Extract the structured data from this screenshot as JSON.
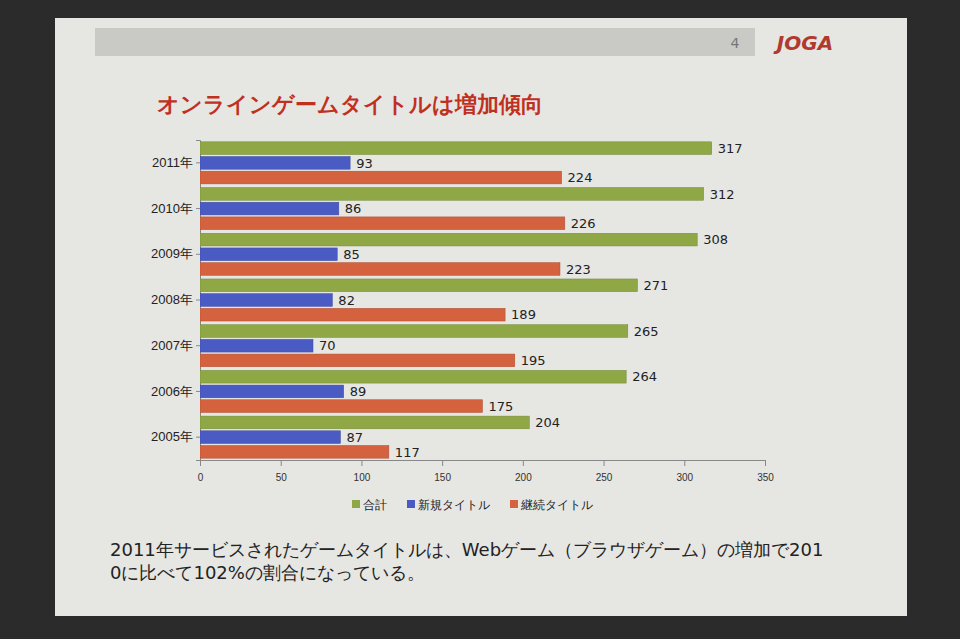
{
  "chart_data": {
    "type": "bar",
    "orientation": "horizontal",
    "title": "オンラインゲームタイトルは増加傾向",
    "page_number": "4",
    "logo": "JOGA",
    "note": "2011年サービスされたゲームタイトルは、Webゲーム（ブラウザゲーム）の増加で2010に比べて102%の割合になっている。",
    "categories": [
      "2011年",
      "2010年",
      "2009年",
      "2008年",
      "2007年",
      "2006年",
      "2005年"
    ],
    "series": [
      {
        "name": "合計",
        "color": "#8fa845",
        "values": [
          317,
          312,
          308,
          271,
          265,
          264,
          204
        ]
      },
      {
        "name": "新規タイトル",
        "color": "#4a5cc4",
        "values": [
          93,
          86,
          85,
          82,
          70,
          89,
          87
        ]
      },
      {
        "name": "継続タイトル",
        "color": "#d4623f",
        "values": [
          224,
          226,
          223,
          189,
          195,
          175,
          117
        ]
      }
    ],
    "xlim": [
      0,
      350
    ],
    "xticks": [
      0,
      50,
      100,
      150,
      200,
      250,
      300,
      350
    ],
    "data_labels": true,
    "legend": "bottom"
  }
}
